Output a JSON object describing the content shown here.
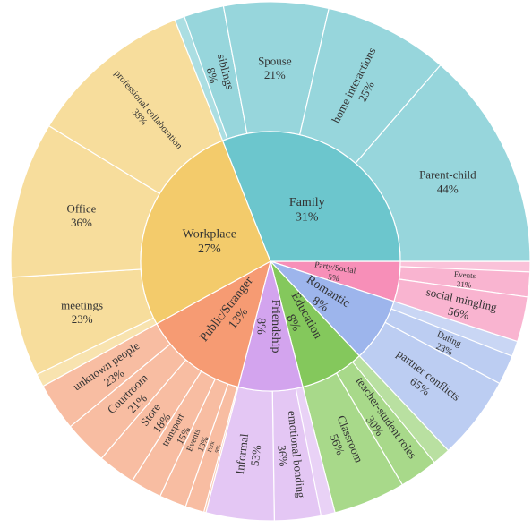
{
  "chart_data": {
    "type": "sunburst",
    "series": [
      {
        "name": "Party/Social",
        "value": 5,
        "value_label": "5%",
        "color": "#f78fb8",
        "child_color": "#f9b4d0",
        "children": [
          {
            "name": "Events",
            "value": 31,
            "value_label": "31%"
          },
          {
            "name": "social mingling",
            "value": 56,
            "value_label": "56%"
          }
        ]
      },
      {
        "name": "Romantic",
        "value": 8,
        "value_label": "8%",
        "color": "#9db5ec",
        "child_color": "#bccdf2",
        "children": [
          {
            "name": "Dating",
            "value": 23,
            "value_label": "23%"
          },
          {
            "name": "partner conflicts",
            "value": 65,
            "value_label": "65%"
          }
        ]
      },
      {
        "name": "Education",
        "value": 8,
        "value_label": "8%",
        "color": "#84c85c",
        "child_color": "#a8d98a",
        "children": [
          {
            "name": "teacher-student roles",
            "value": 30,
            "value_label": "30%"
          },
          {
            "name": "Classroom",
            "value": 56,
            "value_label": "56%"
          }
        ]
      },
      {
        "name": "Friendship",
        "value": 8,
        "value_label": "8%",
        "color": "#d3a4ee",
        "child_color": "#e4c7f4",
        "children": [
          {
            "name": "emotional bonding",
            "value": 36,
            "value_label": "36%"
          },
          {
            "name": "Informal",
            "value": 53,
            "value_label": "53%"
          }
        ]
      },
      {
        "name": "Public/Stranger",
        "value": 13,
        "value_label": "13%",
        "color": "#f69b73",
        "child_color": "#f8bda2",
        "children": [
          {
            "name": "Park",
            "value": 9,
            "value_label": "9%"
          },
          {
            "name": "Events",
            "value": 13,
            "value_label": "13%"
          },
          {
            "name": "transport",
            "value": 15,
            "value_label": "15%"
          },
          {
            "name": "Store",
            "value": 18,
            "value_label": "18%"
          },
          {
            "name": "Courtroom",
            "value": 21,
            "value_label": "21%"
          },
          {
            "name": "unknown people",
            "value": 23,
            "value_label": "23%"
          }
        ]
      },
      {
        "name": "Workplace",
        "value": 27,
        "value_label": "27%",
        "color": "#f3cb6b",
        "child_color": "#f7dd9c",
        "children": [
          {
            "name": "meetings",
            "value": 23,
            "value_label": "23%"
          },
          {
            "name": "Office",
            "value": 36,
            "value_label": "36%"
          },
          {
            "name": "professional collaboration",
            "value": 38,
            "value_label": "38%"
          }
        ]
      },
      {
        "name": "Family",
        "value": 31,
        "value_label": "31%",
        "color": "#6cc6cd",
        "child_color": "#97d6dc",
        "children": [
          {
            "name": "siblings",
            "value": 8,
            "value_label": "8%"
          },
          {
            "name": "Spouse",
            "value": 21,
            "value_label": "21%"
          },
          {
            "name": "home interactions",
            "value": 25,
            "value_label": "25%"
          },
          {
            "name": "Parent-child",
            "value": 44,
            "value_label": "44%"
          }
        ]
      }
    ]
  }
}
